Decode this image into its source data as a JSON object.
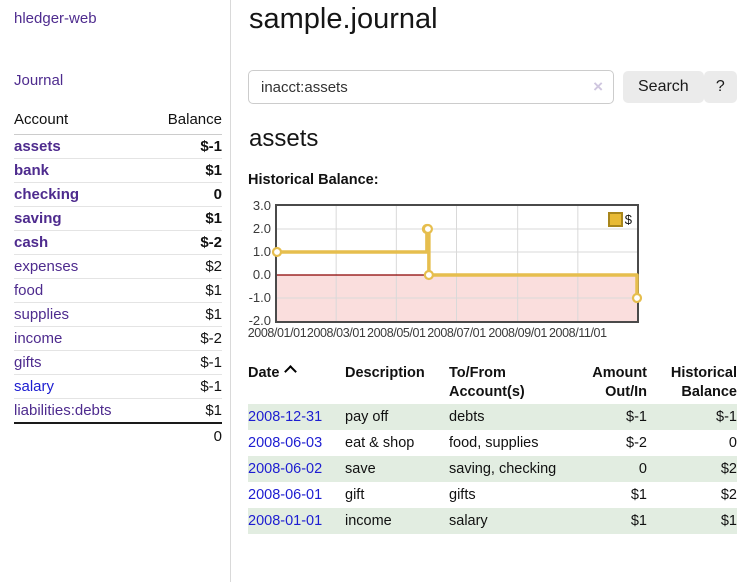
{
  "app": {
    "brand": "hledger-web"
  },
  "nav": {
    "journal": "Journal"
  },
  "sidebar": {
    "header": {
      "account": "Account",
      "balance": "Balance"
    },
    "rows": [
      {
        "account": "assets",
        "balance": "$-1"
      },
      {
        "account": "bank",
        "balance": "$1"
      },
      {
        "account": "checking",
        "balance": "0"
      },
      {
        "account": "saving",
        "balance": "$1"
      },
      {
        "account": "cash",
        "balance": "$-2"
      },
      {
        "account": "expenses",
        "balance": "$2"
      },
      {
        "account": "food",
        "balance": "$1"
      },
      {
        "account": "supplies",
        "balance": "$1"
      },
      {
        "account": "income",
        "balance": "$-2"
      },
      {
        "account": "gifts",
        "balance": "$-1"
      },
      {
        "account": "salary",
        "balance": "$-1"
      },
      {
        "account": "liabilities:debts",
        "balance": "$1"
      }
    ],
    "total": "0"
  },
  "main": {
    "title": "sample.journal",
    "search": {
      "value": "inacct:assets",
      "clear": "×",
      "button": "Search",
      "help": "?"
    },
    "account_heading": "assets",
    "chart_label": "Historical Balance:"
  },
  "chart_data": {
    "type": "line",
    "step": true,
    "title": "Historical Balance",
    "series": [
      {
        "name": "$",
        "points": [
          {
            "date": "2008-01-01",
            "day": 0,
            "value": 1
          },
          {
            "date": "2008-06-01",
            "day": 152,
            "value": 2
          },
          {
            "date": "2008-06-02",
            "day": 153,
            "value": 2
          },
          {
            "date": "2008-06-03",
            "day": 154,
            "value": 0
          },
          {
            "date": "2008-12-31",
            "day": 365,
            "value": -1
          }
        ]
      }
    ],
    "x_ticks": [
      {
        "label": "2008/01/01",
        "day": 0
      },
      {
        "label": "2008/03/01",
        "day": 60
      },
      {
        "label": "2008/05/01",
        "day": 121
      },
      {
        "label": "2008/07/01",
        "day": 182
      },
      {
        "label": "2008/09/01",
        "day": 244
      },
      {
        "label": "2008/11/01",
        "day": 305
      }
    ],
    "y_ticks": [
      {
        "label": "3.0",
        "value": 3
      },
      {
        "label": "2.0",
        "value": 2
      },
      {
        "label": "1.0",
        "value": 1
      },
      {
        "label": "0.0",
        "value": 0
      },
      {
        "label": "-1.0",
        "value": -1
      },
      {
        "label": "-2.0",
        "value": -2
      }
    ],
    "ylim": [
      -2,
      3
    ],
    "xlim_days": [
      0,
      365
    ],
    "grid": true,
    "legend": {
      "label": "$",
      "position": "top-right"
    },
    "colors": {
      "line": "#e6be4e",
      "marker_fill": "#ffffff",
      "negative_fill": "#fadedd",
      "zero_line": "#8b0000",
      "grid": "#d9d9d9",
      "legend_fill": "#e8ba35",
      "legend_border": "#a8861c"
    }
  },
  "register": {
    "headers": {
      "date": "Date",
      "description": "Description",
      "tofrom_line1": "To/From",
      "tofrom_line2": "Account(s)",
      "amount_line1": "Amount",
      "amount_line2": "Out/In",
      "balance_line1": "Historical",
      "balance_line2": "Balance"
    },
    "rows": [
      {
        "date": "2008-12-31",
        "description": "pay off",
        "accounts": "debts",
        "amount": "$-1",
        "balance": "$-1"
      },
      {
        "date": "2008-06-03",
        "description": "eat & shop",
        "accounts": "food, supplies",
        "amount": "$-2",
        "balance": "0"
      },
      {
        "date": "2008-06-02",
        "description": "save",
        "accounts": "saving, checking",
        "amount": "0",
        "balance": "$2"
      },
      {
        "date": "2008-06-01",
        "description": "gift",
        "accounts": "gifts",
        "amount": "$1",
        "balance": "$2"
      },
      {
        "date": "2008-01-01",
        "description": "income",
        "accounts": "salary",
        "amount": "$1",
        "balance": "$1"
      }
    ]
  }
}
